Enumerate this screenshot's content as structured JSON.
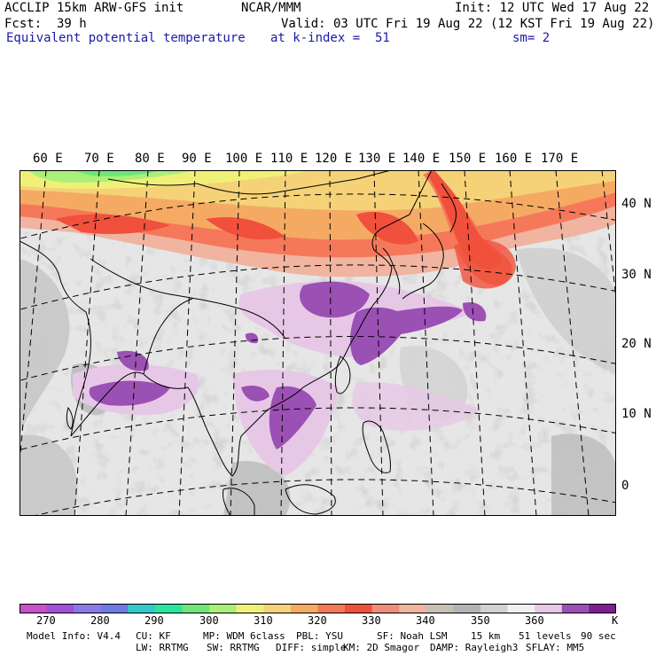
{
  "header": {
    "model": "ACCLIP 15km ARW-GFS init",
    "org": "NCAR/MMM",
    "init": "Init: 12 UTC Wed 17 Aug 22",
    "fcst_label": "Fcst:",
    "fcst_value": "39 h",
    "valid": "Valid: 03 UTC Fri 19 Aug 22 (12 KST Fri 19 Aug 22)",
    "field": "Equivalent potential temperature",
    "level": "at k-index =  51",
    "smooth": "sm= 2"
  },
  "map": {
    "lon_labels": [
      "60 E",
      "70 E",
      "80 E",
      "90 E",
      "100 E",
      "110 E",
      "120 E",
      "130 E",
      "140 E",
      "150 E",
      "160 E",
      "170 E"
    ],
    "lat_labels": [
      "40 N",
      "30 N",
      "20 N",
      "10 N",
      "0"
    ]
  },
  "colorbar": {
    "colors": [
      "#c850c8",
      "#a050dc",
      "#8c78e6",
      "#6e78e6",
      "#32c8c8",
      "#28e6a0",
      "#6ee678",
      "#aaf078",
      "#f0f078",
      "#f5d278",
      "#f5aa64",
      "#f5785a",
      "#f0503c",
      "#f08c78",
      "#f0b4a0",
      "#c8beb4",
      "#b4b4b4",
      "#d2d2d2",
      "#f0f0f0",
      "#e6c8e6",
      "#9b50b4",
      "#7d1e91"
    ],
    "labels": [
      "270",
      "280",
      "290",
      "300",
      "310",
      "320",
      "330",
      "340",
      "350",
      "360"
    ],
    "unit": "K"
  },
  "model_info": {
    "line1": [
      "Model Info: V4.4",
      "CU: KF",
      "MP: WDM 6class",
      "PBL: YSU",
      "SF: Noah LSM",
      "15 km",
      "51 levels",
      "90 sec"
    ],
    "line2": [
      "LW: RRTMG",
      "SW: RRTMG",
      "DIFF: simple",
      "KM: 2D Smagor",
      "DAMP: Rayleigh3",
      "SFLAY: MM5"
    ]
  }
}
